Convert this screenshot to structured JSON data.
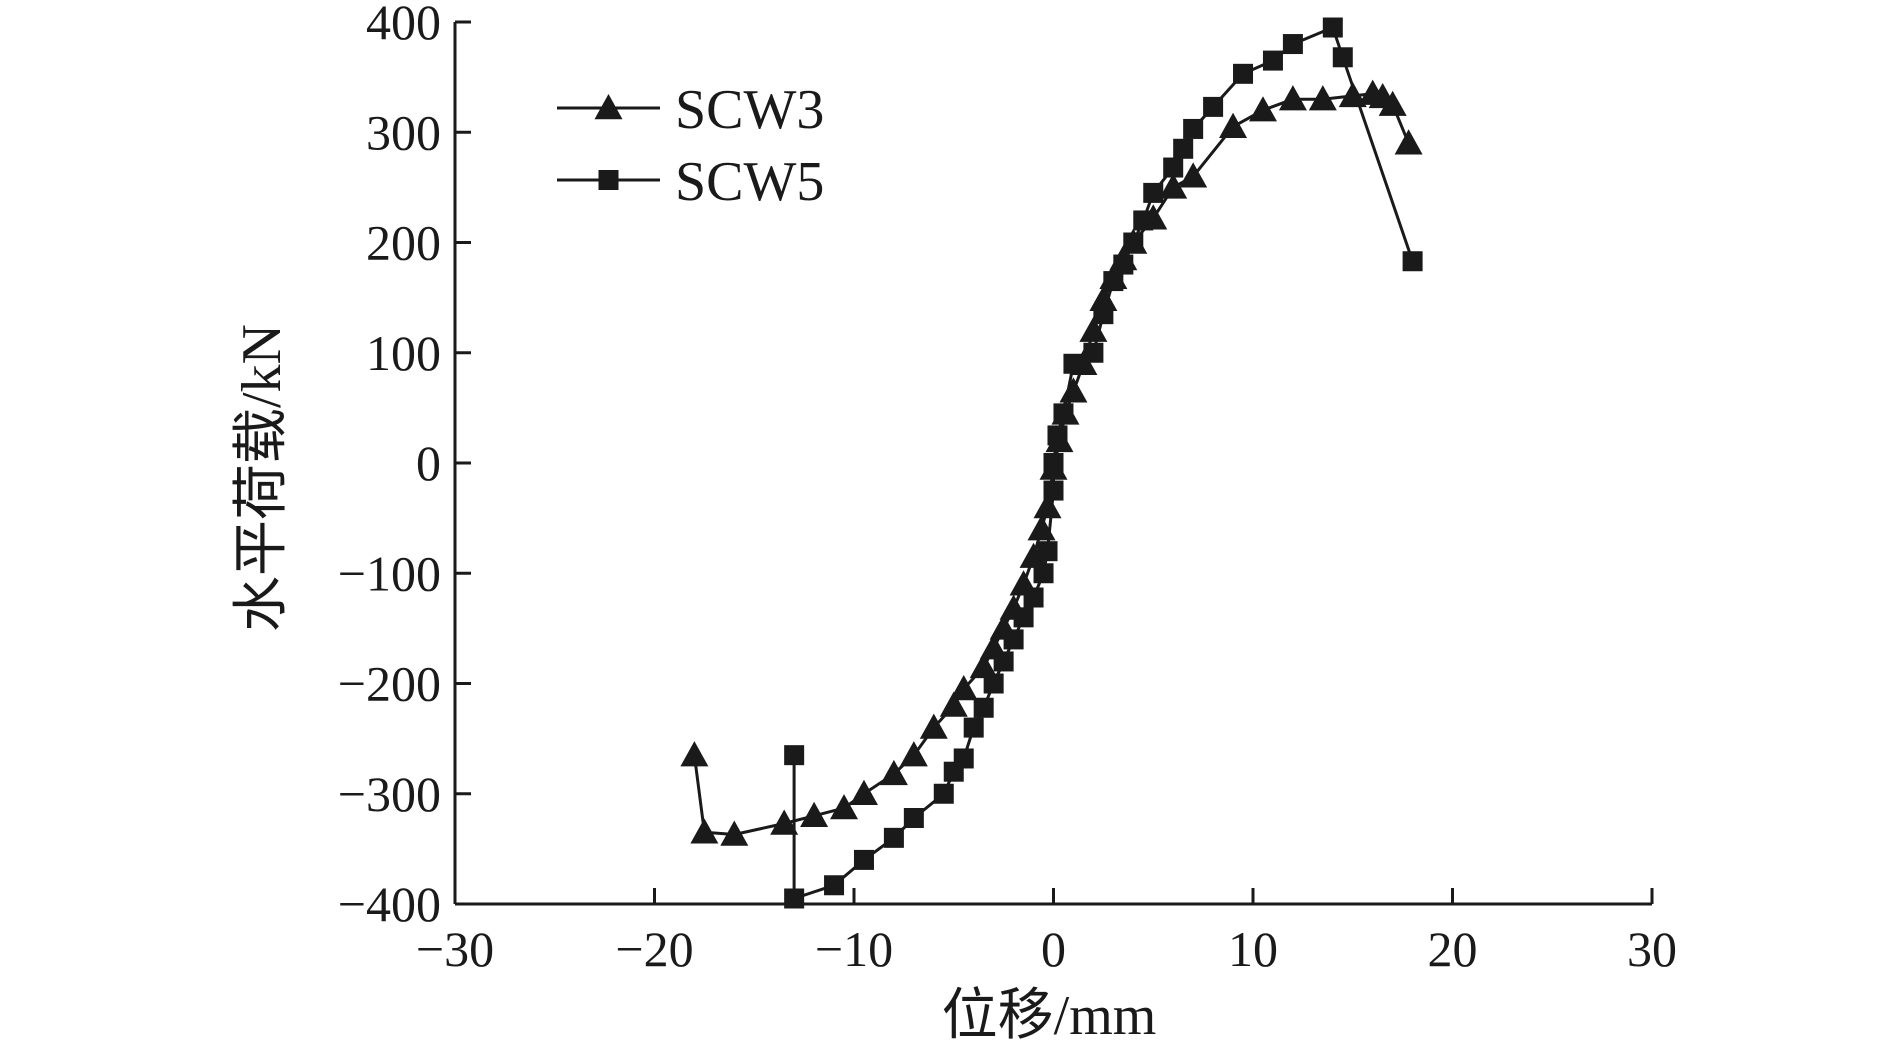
{
  "chart_data": {
    "type": "line",
    "xlabel": "位移/mm",
    "ylabel": "水平荷载/kN",
    "xlim": [
      -30,
      30
    ],
    "ylim": [
      -400,
      400
    ],
    "x_ticks": [
      -30,
      -20,
      -10,
      0,
      10,
      20,
      30
    ],
    "y_ticks": [
      -400,
      -300,
      -200,
      -100,
      0,
      100,
      200,
      300,
      400
    ],
    "x_tick_labels": [
      "−30",
      "−20",
      "−10",
      "0",
      "10",
      "20",
      "30"
    ],
    "y_tick_labels": [
      "−400",
      "−300",
      "−200",
      "−100",
      "0",
      "100",
      "200",
      "300",
      "400"
    ],
    "grid": false,
    "legend": "top-left",
    "series": [
      {
        "name": "SCW3",
        "marker": "triangle",
        "color": "#1a1a1a",
        "points": [
          [
            -18,
            -265
          ],
          [
            -17.5,
            -335
          ],
          [
            -16,
            -337
          ],
          [
            -13.5,
            -327
          ],
          [
            -12,
            -320
          ],
          [
            -10.5,
            -313
          ],
          [
            -9.5,
            -300
          ],
          [
            -8,
            -282
          ],
          [
            -7,
            -265
          ],
          [
            -6,
            -240
          ],
          [
            -5,
            -220
          ],
          [
            -4.5,
            -205
          ],
          [
            -3.5,
            -185
          ],
          [
            -3,
            -168
          ],
          [
            -2.5,
            -150
          ],
          [
            -2,
            -132
          ],
          [
            -1.5,
            -110
          ],
          [
            -1,
            -85
          ],
          [
            -0.6,
            -60
          ],
          [
            -0.3,
            -40
          ],
          [
            0,
            -5
          ],
          [
            0.3,
            20
          ],
          [
            0.6,
            45
          ],
          [
            1,
            65
          ],
          [
            1.5,
            90
          ],
          [
            2,
            120
          ],
          [
            2.5,
            148
          ],
          [
            3,
            168
          ],
          [
            3.5,
            185
          ],
          [
            4,
            200
          ],
          [
            5,
            222
          ],
          [
            6,
            250
          ],
          [
            7,
            260
          ],
          [
            9,
            305
          ],
          [
            10.5,
            320
          ],
          [
            12,
            330
          ],
          [
            13.5,
            330
          ],
          [
            15,
            333
          ],
          [
            16,
            335
          ],
          [
            16.5,
            332
          ],
          [
            17,
            325
          ],
          [
            17.8,
            290
          ]
        ]
      },
      {
        "name": "SCW5",
        "marker": "square",
        "color": "#1a1a1a",
        "points": [
          [
            -13,
            -265
          ],
          [
            -13,
            -395
          ],
          [
            -11,
            -383
          ],
          [
            -9.5,
            -360
          ],
          [
            -8,
            -340
          ],
          [
            -7,
            -322
          ],
          [
            -5.5,
            -300
          ],
          [
            -5,
            -280
          ],
          [
            -4.5,
            -268
          ],
          [
            -4,
            -240
          ],
          [
            -3.5,
            -222
          ],
          [
            -3,
            -200
          ],
          [
            -2.5,
            -180
          ],
          [
            -2,
            -160
          ],
          [
            -1.5,
            -140
          ],
          [
            -1,
            -122
          ],
          [
            -0.5,
            -100
          ],
          [
            -0.3,
            -80
          ],
          [
            0,
            -25
          ],
          [
            0,
            0
          ],
          [
            0.2,
            25
          ],
          [
            0.5,
            45
          ],
          [
            1,
            90
          ],
          [
            2,
            100
          ],
          [
            2.5,
            135
          ],
          [
            3,
            165
          ],
          [
            3.5,
            180
          ],
          [
            4,
            200
          ],
          [
            4.5,
            220
          ],
          [
            5,
            245
          ],
          [
            6,
            268
          ],
          [
            6.5,
            285
          ],
          [
            7,
            303
          ],
          [
            8,
            323
          ],
          [
            9.5,
            353
          ],
          [
            11,
            365
          ],
          [
            12,
            380
          ],
          [
            14,
            395
          ],
          [
            14.5,
            368
          ],
          [
            18,
            183
          ]
        ]
      }
    ]
  }
}
